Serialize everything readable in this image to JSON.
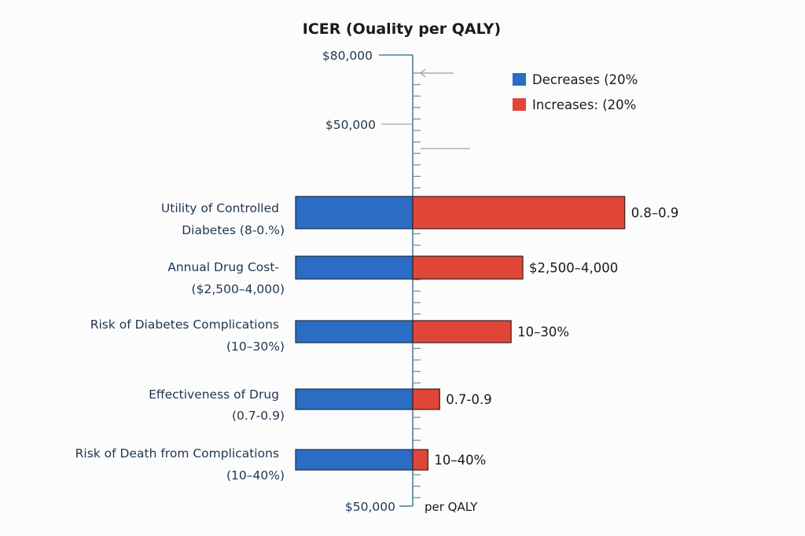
{
  "chart_data": {
    "type": "bar",
    "subtype": "tornado",
    "title": "ICER (Ouality per QALY)",
    "ylabel_top": "$80,000",
    "ylabel_mid": "$50,000",
    "ylabel_bottom": "$50,000",
    "axis_note": "per QALY",
    "legend_position": "top-right",
    "legend": [
      {
        "name": "Decreases (20%",
        "color": "#2b6cc4"
      },
      {
        "name": "Increases: (20%",
        "color": "#e04637"
      }
    ],
    "categories": [
      {
        "label_line1": "Utility of Controlled",
        "label_line2": "Diabetes (8-0.%)",
        "range_label": "0.8–0.9",
        "decrease": 1.0,
        "increase": 1.81
      },
      {
        "label_line1": "Annual Drug Cost-",
        "label_line2": "($2,500–4,000)",
        "range_label": "$2,500–4,000",
        "decrease": 1.0,
        "increase": 0.94
      },
      {
        "label_line1": "Risk of Diabetes Complications",
        "label_line2": "(10–30%)",
        "range_label": "10–30%",
        "decrease": 1.0,
        "increase": 0.84
      },
      {
        "label_line1": "Effectiveness of Drug",
        "label_line2": "(0.7-0.9)",
        "range_label": "0.7-0.9",
        "decrease": 1.0,
        "increase": 0.23
      },
      {
        "label_line1": "Risk of Death from Complications",
        "label_line2": "(10–40%)",
        "range_label": "10–40%",
        "decrease": 1.0,
        "increase": 0.13
      }
    ],
    "series": [
      {
        "name": "Decreases (20%",
        "values": [
          1.0,
          1.0,
          1.0,
          1.0,
          1.0
        ]
      },
      {
        "name": "Increases: (20%",
        "values": [
          1.81,
          0.94,
          0.84,
          0.23,
          0.13
        ]
      }
    ],
    "value_units": "relative bar length (decrease bar = 1.0)",
    "grid": false
  }
}
